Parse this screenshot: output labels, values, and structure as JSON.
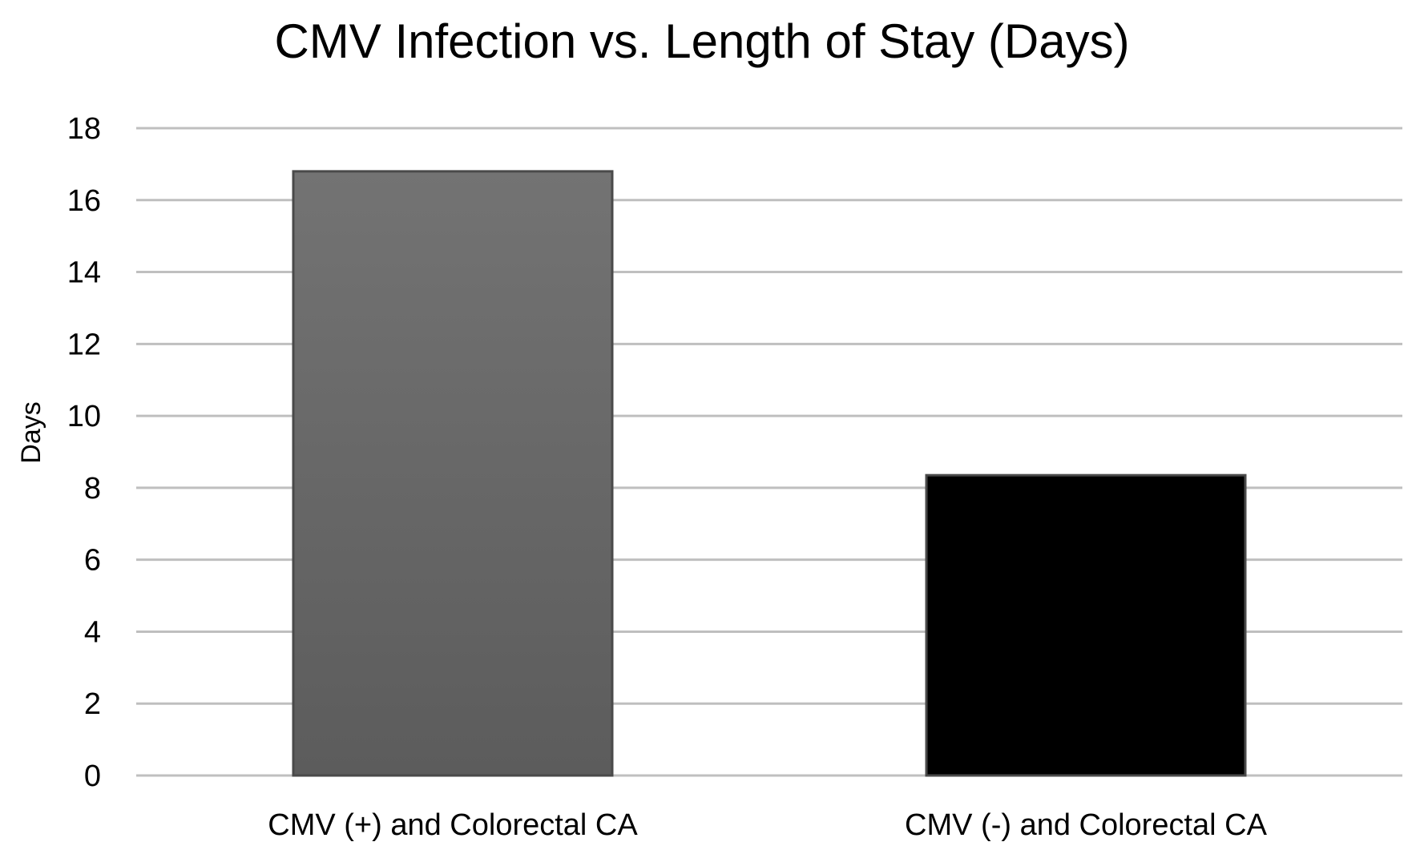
{
  "chart_data": {
    "type": "bar",
    "title": "CMV Infection vs. Length of Stay (Days)",
    "xlabel": "",
    "ylabel": "Days",
    "categories": [
      "CMV (+) and Colorectal CA",
      "CMV (-) and Colorectal CA"
    ],
    "values": [
      16.8,
      8.35
    ],
    "ylim": [
      0,
      18
    ],
    "yticks": [
      0,
      2,
      4,
      6,
      8,
      10,
      12,
      14,
      16,
      18
    ],
    "grid": true,
    "legend": "none",
    "bar_colors": [
      "#666666",
      "#000000"
    ],
    "bar_edge_color": "#4a4a4a",
    "gridline_color": "#bfbfbf"
  }
}
